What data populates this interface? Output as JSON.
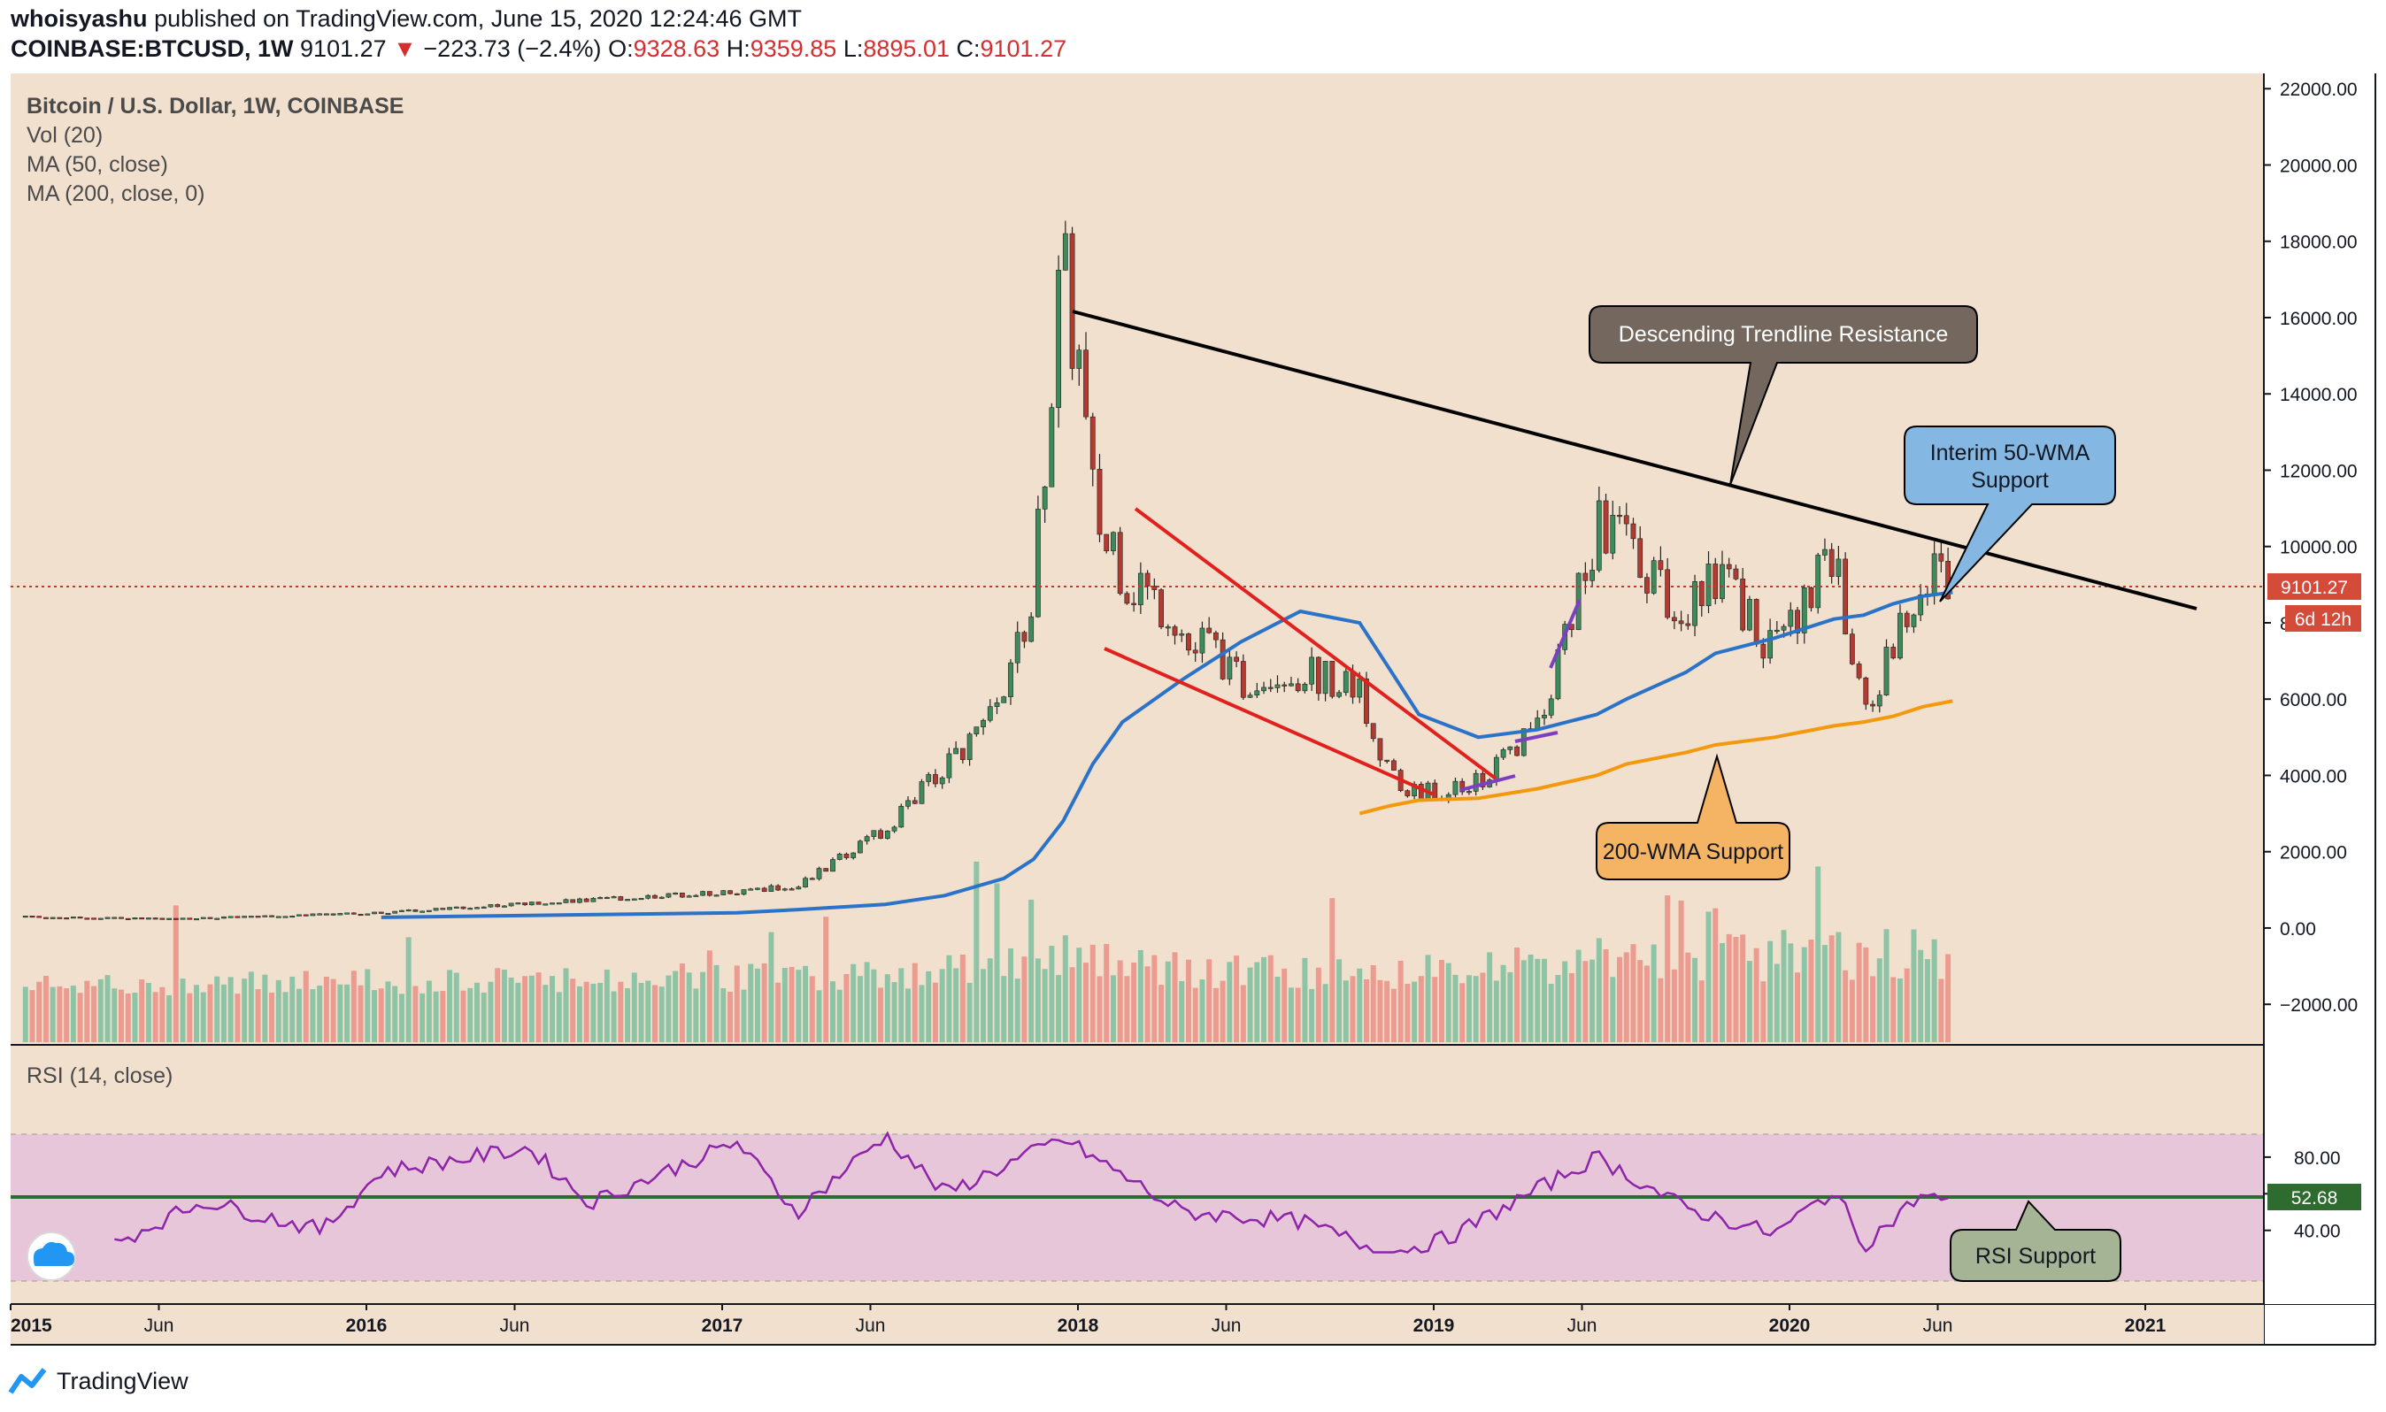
{
  "header": {
    "author": "whoisyashu",
    "published": "published on TradingView.com, June 15, 2020 12:24:46 GMT",
    "symbol": "COINBASE:BTCUSD, 1W",
    "last": "9101.27",
    "change_arrow": "▼",
    "change": "−223.73 (−2.4%)",
    "open_label": "O:",
    "open": "9328.63",
    "high_label": "H:",
    "high": "9359.85",
    "low_label": "L:",
    "low": "8895.01",
    "close_label": "C:",
    "close": "9101.27"
  },
  "legend": [
    "Bitcoin / U.S. Dollar, 1W, COINBASE",
    "Vol (20)",
    "MA (50, close)",
    "MA (200, close, 0)"
  ],
  "rsi_legend": "RSI (14, close)",
  "price_badge": "9101.27",
  "time_badge": "6d 12h",
  "rsi_badge": "52.68",
  "footer_brand": "TradingView",
  "colors": {
    "background": "#f2e0ce",
    "up_candle": "#3d8a5a",
    "down_candle": "#b23a30",
    "ma50": "#2a73c8",
    "ma200": "#f3990e",
    "rsi_line": "#8e24aa",
    "rsi_band": "#e6c6d8",
    "trendline": "#000000",
    "triangle": "#e0211e"
  },
  "annotations": [
    {
      "id": "resistance",
      "text": "Descending Trendline Resistance",
      "fill": "#74685e",
      "color": "#ffffff"
    },
    {
      "id": "wma50",
      "text": "Interim 50-WMA Support",
      "fill": "#84b8e2",
      "color": "#131722"
    },
    {
      "id": "wma200",
      "text": "200-WMA Support",
      "fill": "#f4b463",
      "color": "#131722"
    },
    {
      "id": "rsi",
      "text": "RSI Support",
      "fill": "#a6b496",
      "color": "#131722"
    }
  ],
  "chart_data": [
    {
      "type": "candlestick",
      "title": "Bitcoin / U.S. Dollar, 1W, COINBASE",
      "x_ticks": [
        "2015",
        "Jun",
        "2016",
        "Jun",
        "2017",
        "Jun",
        "2018",
        "Jun",
        "2019",
        "Jun",
        "2020",
        "Jun",
        "2021"
      ],
      "y_ticks": [
        "22000.00",
        "20000.00",
        "18000.00",
        "16000.00",
        "14000.00",
        "12000.00",
        "10000.00",
        "8000.00",
        "6000.00",
        "4000.00",
        "2000.00",
        "0.00",
        "−2000.00"
      ],
      "ylim": [
        -2900,
        22400
      ],
      "x": [
        "2015-01",
        "2015-06",
        "2016-01",
        "2016-06",
        "2017-01",
        "2017-03",
        "2017-06",
        "2017-08",
        "2017-10",
        "2017-11",
        "2017-12",
        "2018-01",
        "2018-02",
        "2018-04",
        "2018-06",
        "2018-08",
        "2018-10",
        "2018-11",
        "2018-12",
        "2019-02",
        "2019-04",
        "2019-06",
        "2019-07",
        "2019-09",
        "2019-10",
        "2019-12",
        "2020-02",
        "2020-03",
        "2020-04",
        "2020-05",
        "2020-06"
      ],
      "series": [
        {
          "name": "price",
          "values": [
            300,
            240,
            400,
            650,
            950,
            1100,
            2600,
            4200,
            5800,
            9000,
            17500,
            11500,
            9000,
            8000,
            6500,
            6700,
            6300,
            4000,
            3500,
            3800,
            5200,
            10500,
            10000,
            8200,
            9300,
            7200,
            9900,
            5500,
            7500,
            9300,
            9101
          ]
        },
        {
          "name": "MA (50, close)",
          "values": [
            null,
            null,
            280,
            330,
            400,
            480,
            620,
            850,
            1300,
            1800,
            2800,
            4300,
            5400,
            6500,
            7500,
            8300,
            8000,
            6800,
            5600,
            5000,
            5200,
            5600,
            6000,
            6700,
            7200,
            7600,
            8100,
            8200,
            8500,
            8700,
            8800
          ]
        },
        {
          "name": "MA (200, close, 0)",
          "values": [
            null,
            null,
            null,
            null,
            null,
            null,
            null,
            null,
            null,
            null,
            null,
            null,
            null,
            null,
            null,
            null,
            3000,
            3200,
            3350,
            3400,
            3650,
            4000,
            4300,
            4600,
            4800,
            5000,
            5300,
            5400,
            5550,
            5800,
            5950
          ]
        }
      ],
      "last_price": 9101.27
    },
    {
      "type": "bar",
      "title": "Vol (20)",
      "x": [
        "2015-01",
        "2017-06",
        "2017-12",
        "2018-04",
        "2018-11",
        "2019-06",
        "2020-03"
      ],
      "values": [
        0.4,
        0.6,
        1.0,
        0.7,
        0.6,
        0.9,
        1.0
      ]
    },
    {
      "type": "line",
      "title": "RSI (14, close)",
      "y_ticks": [
        "80.00",
        "60.00",
        "40.00"
      ],
      "ylim": [
        26,
        97
      ],
      "band": [
        30,
        70
      ],
      "support_level": 52.68,
      "x": [
        "2015-04",
        "2015-07",
        "2015-11",
        "2016-01",
        "2016-06",
        "2016-08",
        "2017-01",
        "2017-03",
        "2017-06",
        "2017-08",
        "2017-12",
        "2018-04",
        "2018-08",
        "2018-11",
        "2019-01",
        "2019-06",
        "2019-09",
        "2019-12",
        "2020-02",
        "2020-03",
        "2020-05",
        "2020-06"
      ],
      "values": [
        33,
        56,
        40,
        72,
        85,
        55,
        88,
        50,
        92,
        60,
        90,
        50,
        45,
        27,
        36,
        80,
        52,
        38,
        62,
        32,
        60,
        53
      ]
    }
  ]
}
